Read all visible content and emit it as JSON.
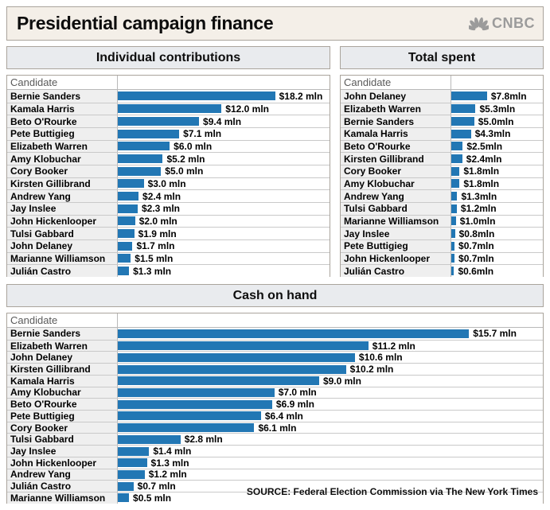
{
  "header": {
    "title": "Presidential campaign finance",
    "brand": "CNBC"
  },
  "colors": {
    "bar": "#2277b4",
    "title_bg": "#f4efe8",
    "section_header_bg": "#e9ebee",
    "label_column_bg": "#efefef",
    "border": "#aaa49c",
    "brand_gray": "#9b9b9b"
  },
  "source": "SOURCE: Federal Election Commission via The New York Times",
  "chart_data": [
    {
      "type": "bar",
      "title": "Individual contributions",
      "column_header": "Candidate",
      "orientation": "horizontal",
      "xlim": [
        0,
        24.5
      ],
      "grid": false,
      "legend": false,
      "unit": "mln USD",
      "categories": [
        "Bernie Sanders",
        "Kamala Harris",
        "Beto O'Rourke",
        "Pete Buttigieg",
        "Elizabeth Warren",
        "Amy Klobuchar",
        "Cory Booker",
        "Kirsten Gillibrand",
        "Andrew Yang",
        "Jay Inslee",
        "John Hickenlooper",
        "Tulsi Gabbard",
        "John Delaney",
        "Marianne Williamson",
        "Julián Castro"
      ],
      "values": [
        18.2,
        12.0,
        9.4,
        7.1,
        6.0,
        5.2,
        5.0,
        3.0,
        2.4,
        2.3,
        2.0,
        1.9,
        1.7,
        1.5,
        1.3
      ],
      "value_labels": [
        "$18.2 mln",
        "$12.0 mln",
        "$9.4 mln",
        "$7.1 mln",
        "$6.0 mln",
        "$5.2 mln",
        "$5.0 mln",
        "$3.0 mln",
        "$2.4 mln",
        "$2.3 mln",
        "$2.0 mln",
        "$1.9 mln",
        "$1.7 mln",
        "$1.5 mln",
        "$1.3 mln"
      ]
    },
    {
      "type": "bar",
      "title": "Total spent",
      "column_header": "Candidate",
      "orientation": "horizontal",
      "xlim": [
        0,
        20
      ],
      "grid": false,
      "legend": false,
      "unit": "mln USD",
      "categories": [
        "John Delaney",
        "Elizabeth Warren",
        "Bernie Sanders",
        "Kamala Harris",
        "Beto O'Rourke",
        "Kirsten Gillibrand",
        "Cory Booker",
        "Amy Klobuchar",
        "Andrew Yang",
        "Tulsi Gabbard",
        "Marianne Williamson",
        "Jay Inslee",
        "Pete Buttigieg",
        "John Hickenlooper",
        "Julián Castro"
      ],
      "values": [
        7.8,
        5.3,
        5.0,
        4.3,
        2.5,
        2.4,
        1.8,
        1.8,
        1.3,
        1.2,
        1.0,
        0.8,
        0.7,
        0.7,
        0.6
      ],
      "value_labels": [
        "$7.8mln",
        "$5.3mln",
        "$5.0mln",
        "$4.3mln",
        "$2.5mln",
        "$2.4mln",
        "$1.8mln",
        "$1.8mln",
        "$1.3mln",
        "$1.2mln",
        "$1.0mln",
        "$0.8mln",
        "$0.7mln",
        "$0.7mln",
        "$0.6mln"
      ]
    },
    {
      "type": "bar",
      "title": "Cash on hand",
      "column_header": "Candidate",
      "orientation": "horizontal",
      "xlim": [
        0,
        19
      ],
      "grid": false,
      "legend": false,
      "unit": "mln USD",
      "categories": [
        "Bernie Sanders",
        "Elizabeth Warren",
        "John Delaney",
        "Kirsten Gillibrand",
        "Kamala Harris",
        "Amy Klobuchar",
        "Beto O'Rourke",
        "Pete Buttigieg",
        "Cory Booker",
        "Tulsi Gabbard",
        "Jay Inslee",
        "John Hickenlooper",
        "Andrew Yang",
        "Julián Castro",
        "Marianne Williamson"
      ],
      "values": [
        15.7,
        11.2,
        10.6,
        10.2,
        9.0,
        7.0,
        6.9,
        6.4,
        6.1,
        2.8,
        1.4,
        1.3,
        1.2,
        0.7,
        0.5
      ],
      "value_labels": [
        "$15.7 mln",
        "$11.2 mln",
        "$10.6 mln",
        "$10.2 mln",
        "$9.0 mln",
        "$7.0 mln",
        "$6.9 mln",
        "$6.4 mln",
        "$6.1 mln",
        "$2.8 mln",
        "$1.4 mln",
        "$1.3 mln",
        "$1.2 mln",
        "$0.7 mln",
        "$0.5 mln"
      ]
    }
  ]
}
